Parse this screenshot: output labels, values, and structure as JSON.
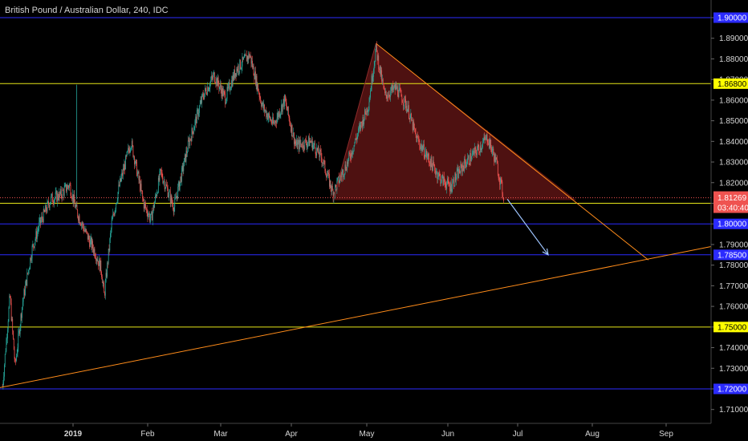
{
  "chart_data": {
    "type": "candlestick",
    "title": "British Pound / Australian Dollar, 240, IDC",
    "ylim": [
      1.703,
      1.905
    ],
    "y_ticks": [
      1.71,
      1.72,
      1.73,
      1.74,
      1.75,
      1.76,
      1.77,
      1.78,
      1.79,
      1.8,
      1.81,
      1.82,
      1.83,
      1.84,
      1.85,
      1.86,
      1.87,
      1.88,
      1.89,
      1.9
    ],
    "y_tick_labels": [
      "1.71000",
      "1.72000",
      "1.73000",
      "1.74000",
      "1.75000",
      "1.76000",
      "1.77000",
      "1.78000",
      "1.79000",
      "1.80000",
      "1.81000",
      "1.82000",
      "1.83000",
      "1.84000",
      "1.85000",
      "1.86000",
      "1.87000",
      "1.88000",
      "1.89000",
      "1.90000"
    ],
    "x_labels": [
      {
        "label": "2019",
        "month_index": 0,
        "bold": true
      },
      {
        "label": "Feb",
        "month_index": 1
      },
      {
        "label": "Mar",
        "month_index": 2
      },
      {
        "label": "Apr",
        "month_index": 3
      },
      {
        "label": "May",
        "month_index": 4
      },
      {
        "label": "Jun",
        "month_index": 5
      },
      {
        "label": "Jul",
        "month_index": 6
      },
      {
        "label": "Aug",
        "month_index": 7
      },
      {
        "label": "Sep",
        "month_index": 8
      }
    ],
    "price_path": [
      {
        "t": -0.95,
        "p": 1.721
      },
      {
        "t": -0.85,
        "p": 1.765
      },
      {
        "t": -0.78,
        "p": 1.731
      },
      {
        "t": -0.68,
        "p": 1.762
      },
      {
        "t": -0.55,
        "p": 1.788
      },
      {
        "t": -0.45,
        "p": 1.8
      },
      {
        "t": -0.3,
        "p": 1.812
      },
      {
        "t": -0.17,
        "p": 1.814
      },
      {
        "t": -0.05,
        "p": 1.819
      },
      {
        "t": 0.05,
        "p": 1.806
      },
      {
        "t": 0.18,
        "p": 1.795
      },
      {
        "t": 0.3,
        "p": 1.786
      },
      {
        "t": 0.38,
        "p": 1.778
      },
      {
        "t": 0.42,
        "p": 1.765
      },
      {
        "t": 0.52,
        "p": 1.8
      },
      {
        "t": 0.62,
        "p": 1.818
      },
      {
        "t": 0.78,
        "p": 1.84
      },
      {
        "t": 0.95,
        "p": 1.81
      },
      {
        "t": 1.05,
        "p": 1.802
      },
      {
        "t": 1.18,
        "p": 1.825
      },
      {
        "t": 1.36,
        "p": 1.808
      },
      {
        "t": 1.55,
        "p": 1.838
      },
      {
        "t": 1.75,
        "p": 1.862
      },
      {
        "t": 1.9,
        "p": 1.872
      },
      {
        "t": 2.05,
        "p": 1.861
      },
      {
        "t": 2.2,
        "p": 1.875
      },
      {
        "t": 2.38,
        "p": 1.882
      },
      {
        "t": 2.55,
        "p": 1.857
      },
      {
        "t": 2.7,
        "p": 1.848
      },
      {
        "t": 2.85,
        "p": 1.86
      },
      {
        "t": 3.0,
        "p": 1.838
      },
      {
        "t": 3.2,
        "p": 1.84
      },
      {
        "t": 3.35,
        "p": 1.832
      },
      {
        "t": 3.5,
        "p": 1.815
      },
      {
        "t": 3.7,
        "p": 1.83
      },
      {
        "t": 3.85,
        "p": 1.845
      },
      {
        "t": 3.98,
        "p": 1.858
      },
      {
        "t": 4.08,
        "p": 1.885
      },
      {
        "t": 4.2,
        "p": 1.862
      },
      {
        "t": 4.35,
        "p": 1.866
      },
      {
        "t": 4.5,
        "p": 1.857
      },
      {
        "t": 4.62,
        "p": 1.842
      },
      {
        "t": 4.78,
        "p": 1.832
      },
      {
        "t": 4.95,
        "p": 1.822
      },
      {
        "t": 5.08,
        "p": 1.818
      },
      {
        "t": 5.25,
        "p": 1.828
      },
      {
        "t": 5.45,
        "p": 1.836
      },
      {
        "t": 5.58,
        "p": 1.842
      },
      {
        "t": 5.7,
        "p": 1.83
      },
      {
        "t": 5.8,
        "p": 1.813
      }
    ],
    "current_price": 1.81269,
    "countdown": "03:40:40",
    "horizontal_levels": [
      {
        "value": 1.9,
        "label": "1.90000",
        "color": "#2b2bff",
        "tag_bg": "#2b2bff",
        "tag_fg": "#ffffff"
      },
      {
        "value": 1.868,
        "label": "1.86800",
        "color": "#e6e619",
        "tag_bg": "#ffff00",
        "tag_fg": "#000000"
      },
      {
        "value": 1.81,
        "label": "1.81000",
        "color": "#e6e619",
        "tag_bg": "#ffff00",
        "tag_fg": "#000000"
      },
      {
        "value": 1.8,
        "label": "1.80000",
        "color": "#2b2bff",
        "tag_bg": "#2b2bff",
        "tag_fg": "#ffffff"
      },
      {
        "value": 1.785,
        "label": "1.78500",
        "color": "#2b2bff",
        "tag_bg": "#2b2bff",
        "tag_fg": "#ffffff"
      },
      {
        "value": 1.75,
        "label": "1.75000",
        "color": "#e6e619",
        "tag_bg": "#ffff00",
        "tag_fg": "#000000"
      },
      {
        "value": 1.72,
        "label": "1.72000",
        "color": "#2b2bff",
        "tag_bg": "#2b2bff",
        "tag_fg": "#ffffff"
      }
    ],
    "current_price_tag": {
      "label": "1.81269",
      "bg": "#ef5350",
      "fg": "#ffffff"
    },
    "trendlines": [
      {
        "from": {
          "t": -1.0,
          "p": 1.7205
        },
        "to": {
          "t": 8.7,
          "p": 1.789
        },
        "color": "#ff8c1a"
      },
      {
        "from": {
          "t": 4.08,
          "p": 1.8875
        },
        "to": {
          "t": 7.75,
          "p": 1.7825
        },
        "color": "#ff8c1a"
      }
    ],
    "triangle": {
      "points": [
        {
          "t": 3.5,
          "p": 1.8115
        },
        {
          "t": 4.08,
          "p": 1.8875
        },
        {
          "t": 6.78,
          "p": 1.8115
        }
      ],
      "fill": "#5c1414",
      "stroke": "#ff8c1a"
    },
    "arrow": {
      "from": {
        "t": 5.85,
        "p": 1.812
      },
      "to": {
        "t": 6.4,
        "p": 1.785
      },
      "color": "#9fc5ff"
    },
    "colors": {
      "up": "#26a69a",
      "down": "#ef5350",
      "axis_text": "#d6d6d6",
      "background": "#000000"
    },
    "grid": false
  }
}
